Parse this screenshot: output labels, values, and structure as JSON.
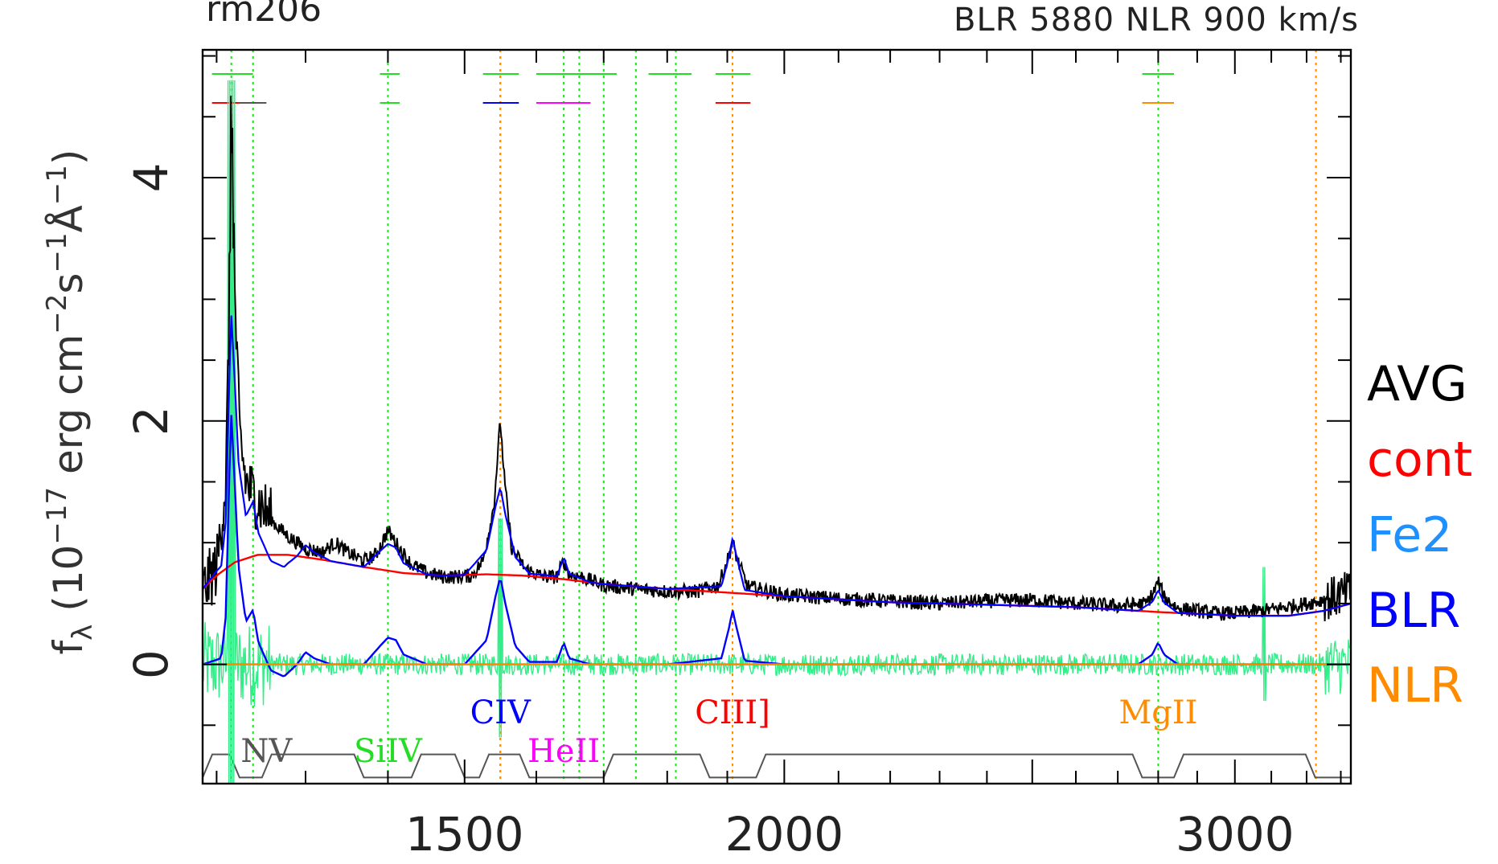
{
  "chart_data": {
    "type": "line",
    "title_left": "rm206",
    "title_right": "BLR 5880 NLR 900 km/s",
    "ylabel_main": "f",
    "ylabel_sub": "λ",
    "ylabel_rest": " (10",
    "ylabel_exp1": "−17",
    "ylabel_unit1": " erg cm",
    "ylabel_exp2": "−2",
    "ylabel_unit2": "s",
    "ylabel_exp3": "−1",
    "ylabel_unit3": "Å",
    "ylabel_exp4": "−1",
    "ylabel_close": ")",
    "x_scale": "log",
    "xlim": [
      1185,
      3330
    ],
    "ylim": [
      -0.98,
      5.05
    ],
    "x_ticks": [
      {
        "value": 1500,
        "label": "1500"
      },
      {
        "value": 2000,
        "label": "2000"
      },
      {
        "value": 3000,
        "label": "3000"
      }
    ],
    "y_ticks": [
      {
        "value": 0,
        "label": "0"
      },
      {
        "value": 2,
        "label": "2"
      },
      {
        "value": 4,
        "label": "4"
      }
    ],
    "legend_placement": "right",
    "legend": [
      {
        "name": "AVG",
        "color": "#000000"
      },
      {
        "name": "cont",
        "color": "#ff0000"
      },
      {
        "name": "Fe2",
        "color": "#1e90ff"
      },
      {
        "name": "BLR",
        "color": "#0000ff"
      },
      {
        "name": "NLR",
        "color": "#ff8c00"
      }
    ],
    "line_labels": [
      {
        "text": "NV",
        "x": 1255,
        "color": "#555555"
      },
      {
        "text": "SiIV",
        "x": 1400,
        "color": "#22dd22"
      },
      {
        "text": "CIV",
        "x": 1549,
        "color": "#0000ff"
      },
      {
        "text": "HeII",
        "x": 1640,
        "color": "#ff00ff"
      },
      {
        "text": "CIII]",
        "x": 1909,
        "color": "#ff0000"
      },
      {
        "text": "MgII",
        "x": 2800,
        "color": "#ff8c00"
      }
    ],
    "line_markers": [
      {
        "x": 1216,
        "color": "#22dd22",
        "style": "dotted"
      },
      {
        "x": 1240,
        "color": "#22dd22",
        "style": "dotted"
      },
      {
        "x": 1400,
        "color": "#22dd22",
        "style": "dotted"
      },
      {
        "x": 1549,
        "color": "#22dd22",
        "style": "dotted"
      },
      {
        "x": 1549,
        "color": "#ff8c00",
        "style": "dotted"
      },
      {
        "x": 1640,
        "color": "#22dd22",
        "style": "dotted"
      },
      {
        "x": 1663,
        "color": "#22dd22",
        "style": "dotted"
      },
      {
        "x": 1700,
        "color": "#22dd22",
        "style": "dotted"
      },
      {
        "x": 1750,
        "color": "#22dd22",
        "style": "dotted"
      },
      {
        "x": 1814,
        "color": "#22dd22",
        "style": "dotted"
      },
      {
        "x": 1909,
        "color": "#ff8c00",
        "style": "dotted"
      },
      {
        "x": 2800,
        "color": "#22dd22",
        "style": "dotted"
      },
      {
        "x": 3227,
        "color": "#ff8c00",
        "style": "dotted"
      }
    ],
    "series": [
      {
        "name": "AVG",
        "color": "#000000",
        "points": [
          [
            1185,
            0.6
          ],
          [
            1200,
            0.8
          ],
          [
            1210,
            1.5
          ],
          [
            1214,
            3.0
          ],
          [
            1216,
            4.6
          ],
          [
            1219,
            3.2
          ],
          [
            1225,
            1.9
          ],
          [
            1232,
            1.5
          ],
          [
            1240,
            1.4
          ],
          [
            1250,
            1.3
          ],
          [
            1265,
            1.15
          ],
          [
            1280,
            1.05
          ],
          [
            1300,
            0.95
          ],
          [
            1320,
            0.92
          ],
          [
            1335,
            1.0
          ],
          [
            1350,
            0.92
          ],
          [
            1370,
            0.85
          ],
          [
            1385,
            0.9
          ],
          [
            1400,
            1.1
          ],
          [
            1415,
            0.95
          ],
          [
            1430,
            0.82
          ],
          [
            1450,
            0.75
          ],
          [
            1470,
            0.72
          ],
          [
            1490,
            0.72
          ],
          [
            1510,
            0.73
          ],
          [
            1525,
            0.85
          ],
          [
            1540,
            1.3
          ],
          [
            1549,
            2.0
          ],
          [
            1555,
            1.5
          ],
          [
            1565,
            0.95
          ],
          [
            1585,
            0.78
          ],
          [
            1610,
            0.72
          ],
          [
            1630,
            0.72
          ],
          [
            1640,
            0.85
          ],
          [
            1648,
            0.74
          ],
          [
            1665,
            0.72
          ],
          [
            1700,
            0.65
          ],
          [
            1750,
            0.62
          ],
          [
            1800,
            0.6
          ],
          [
            1850,
            0.6
          ],
          [
            1885,
            0.65
          ],
          [
            1900,
            0.85
          ],
          [
            1909,
            1.0
          ],
          [
            1918,
            0.85
          ],
          [
            1935,
            0.64
          ],
          [
            2000,
            0.57
          ],
          [
            2100,
            0.54
          ],
          [
            2200,
            0.52
          ],
          [
            2300,
            0.5
          ],
          [
            2400,
            0.52
          ],
          [
            2500,
            0.53
          ],
          [
            2600,
            0.5
          ],
          [
            2700,
            0.48
          ],
          [
            2770,
            0.5
          ],
          [
            2790,
            0.6
          ],
          [
            2800,
            0.68
          ],
          [
            2815,
            0.55
          ],
          [
            2850,
            0.46
          ],
          [
            2950,
            0.42
          ],
          [
            3000,
            0.42
          ],
          [
            3100,
            0.45
          ],
          [
            3200,
            0.5
          ],
          [
            3280,
            0.55
          ],
          [
            3330,
            0.6
          ]
        ]
      },
      {
        "name": "cont",
        "color": "#ff0000",
        "points": [
          [
            1185,
            0.62
          ],
          [
            1200,
            0.73
          ],
          [
            1220,
            0.84
          ],
          [
            1245,
            0.9
          ],
          [
            1280,
            0.9
          ],
          [
            1320,
            0.86
          ],
          [
            1370,
            0.8
          ],
          [
            1420,
            0.75
          ],
          [
            1470,
            0.73
          ],
          [
            1530,
            0.74
          ],
          [
            1580,
            0.73
          ],
          [
            1640,
            0.7
          ],
          [
            1700,
            0.66
          ],
          [
            1800,
            0.62
          ],
          [
            1900,
            0.59
          ],
          [
            2000,
            0.56
          ],
          [
            2200,
            0.51
          ],
          [
            2400,
            0.49
          ],
          [
            2600,
            0.47
          ],
          [
            2800,
            0.43
          ],
          [
            3000,
            0.4
          ],
          [
            3150,
            0.4
          ],
          [
            3250,
            0.44
          ],
          [
            3330,
            0.5
          ]
        ]
      },
      {
        "name": "BLR",
        "color": "#0000ff",
        "points": [
          [
            1185,
            0.0
          ],
          [
            1205,
            0.05
          ],
          [
            1210,
            0.4
          ],
          [
            1214,
            1.6
          ],
          [
            1216,
            2.05
          ],
          [
            1219,
            1.6
          ],
          [
            1224,
            0.8
          ],
          [
            1232,
            0.35
          ],
          [
            1240,
            0.45
          ],
          [
            1246,
            0.18
          ],
          [
            1260,
            -0.05
          ],
          [
            1275,
            -0.1
          ],
          [
            1290,
            0.0
          ],
          [
            1300,
            0.1
          ],
          [
            1310,
            0.05
          ],
          [
            1330,
            0.0
          ],
          [
            1370,
            0.0
          ],
          [
            1390,
            0.15
          ],
          [
            1400,
            0.22
          ],
          [
            1410,
            0.2
          ],
          [
            1420,
            0.08
          ],
          [
            1450,
            0.0
          ],
          [
            1500,
            0.0
          ],
          [
            1530,
            0.2
          ],
          [
            1542,
            0.55
          ],
          [
            1549,
            0.72
          ],
          [
            1556,
            0.5
          ],
          [
            1570,
            0.15
          ],
          [
            1590,
            0.02
          ],
          [
            1630,
            0.02
          ],
          [
            1640,
            0.18
          ],
          [
            1648,
            0.05
          ],
          [
            1680,
            0.0
          ],
          [
            1800,
            0.0
          ],
          [
            1890,
            0.05
          ],
          [
            1903,
            0.3
          ],
          [
            1909,
            0.45
          ],
          [
            1916,
            0.3
          ],
          [
            1930,
            0.03
          ],
          [
            2000,
            0.0
          ],
          [
            2750,
            0.0
          ],
          [
            2785,
            0.08
          ],
          [
            2800,
            0.18
          ],
          [
            2815,
            0.08
          ],
          [
            2850,
            0.0
          ],
          [
            3330,
            0.0
          ]
        ]
      },
      {
        "name": "Fe2",
        "color": "#1e90ff",
        "points": [
          [
            1185,
            0.0
          ],
          [
            3330,
            0.0
          ]
        ]
      },
      {
        "name": "NLR",
        "color": "#ff8c00",
        "points": [
          [
            1185,
            0.0
          ],
          [
            3330,
            0.0
          ]
        ]
      }
    ]
  }
}
